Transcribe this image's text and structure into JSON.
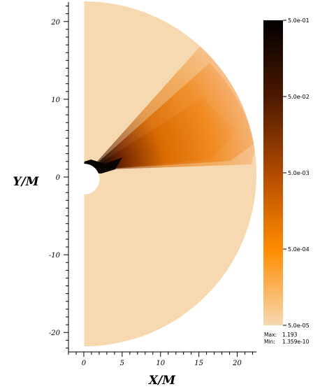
{
  "chart_data": {
    "type": "heatmap",
    "title": "",
    "xlabel": "X/M",
    "ylabel": "Y/M",
    "xlim": [
      -2,
      22.5
    ],
    "ylim": [
      -22.5,
      22.5
    ],
    "xticks": [
      0,
      5,
      10,
      15,
      20
    ],
    "yticks": [
      -20,
      -10,
      0,
      10,
      20
    ],
    "xtick_labels": [
      "0",
      "5",
      "10",
      "15",
      "20"
    ],
    "ytick_labels": [
      "-20",
      "-10",
      "0",
      "10",
      "20"
    ],
    "domain": {
      "shape": "half-disk",
      "outer_radius": 22.5,
      "inner_radius": 2,
      "center": [
        0,
        0
      ]
    },
    "background_value": 5e-05,
    "colorbar": {
      "scale": "log",
      "range": [
        5e-05,
        0.5
      ],
      "tick_values": [
        0.5,
        0.05,
        0.005,
        0.0005,
        5e-05
      ],
      "tick_labels": [
        "5.0e-01",
        "5.0e-02",
        "5.0e-03",
        "5.0e-04",
        "5.0e-05"
      ],
      "colors": [
        "#f6d9b1",
        "#ff8c00",
        "#b14a00",
        "#4b1800",
        "#000000"
      ]
    },
    "stats": {
      "max_label": "Max:",
      "max_value": "1.193",
      "min_label": "Min:",
      "min_value": "1.359e-10"
    },
    "outflow_wedge": {
      "description_values": {
        "angle_min_deg": 3,
        "angle_max_deg": 55,
        "r_min": 2,
        "r_max": 22.5
      },
      "peak_value": 0.5
    }
  }
}
